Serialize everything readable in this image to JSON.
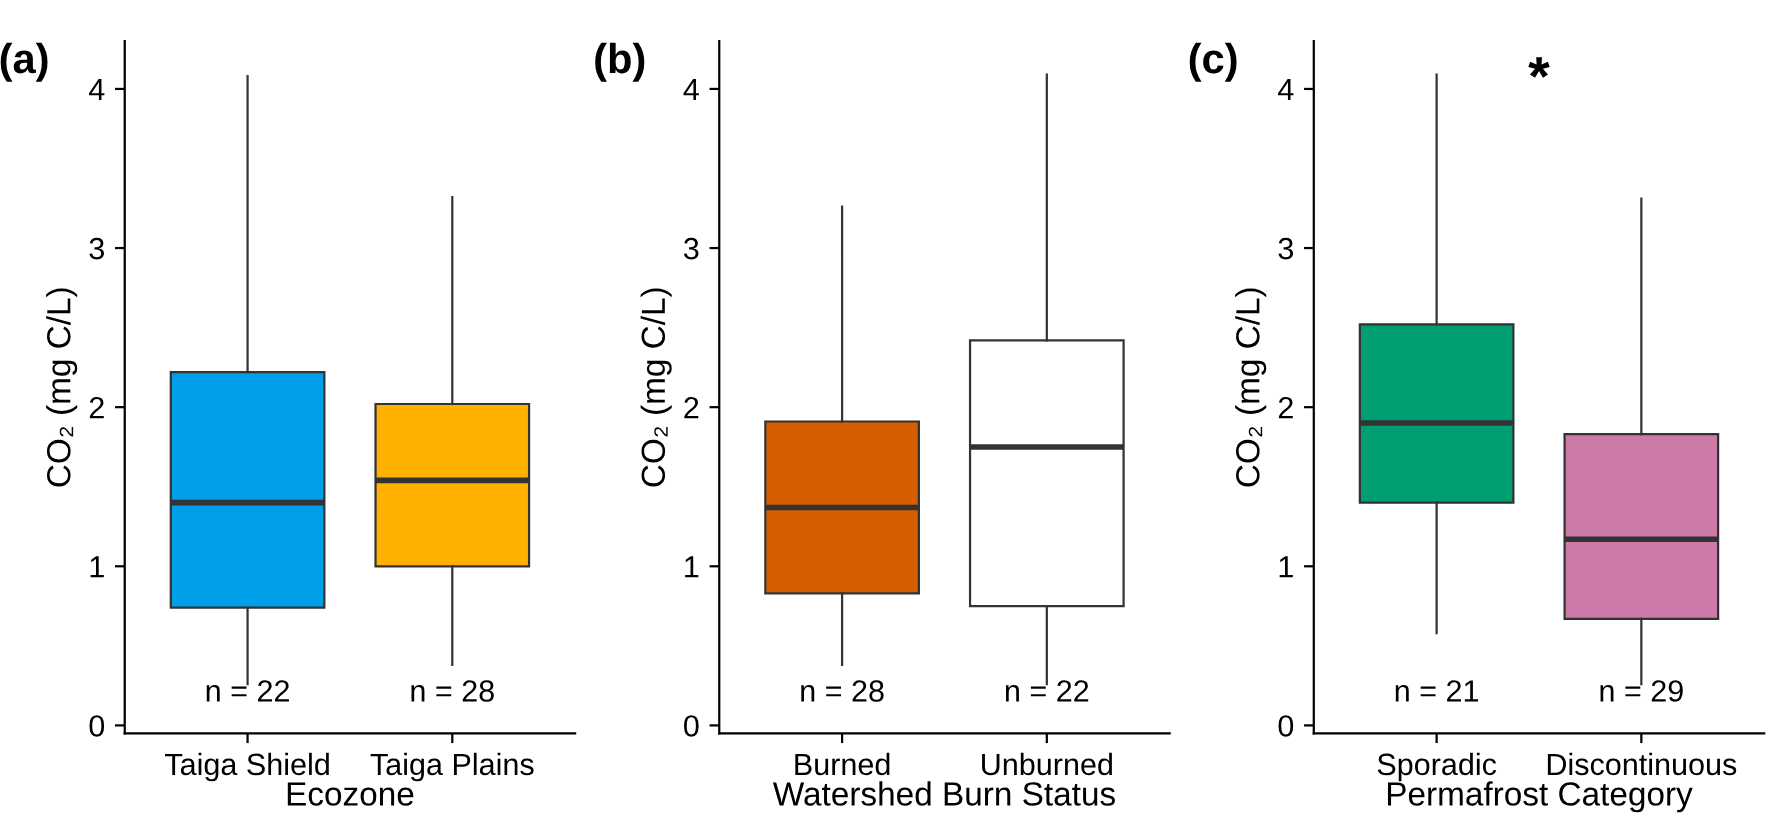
{
  "chart_data": [
    {
      "type": "box",
      "title": "(a)",
      "xlabel": "Ecozone",
      "ylabel": "CO₂ (mg C/L)",
      "categories": [
        "Taiga Shield",
        "Taiga Plains"
      ],
      "colors": [
        "#00a0e9",
        "#ffb000"
      ],
      "boxes": [
        {
          "low": 0.26,
          "q1": 0.74,
          "median": 1.4,
          "q3": 2.22,
          "high": 4.08
        },
        {
          "low": 0.38,
          "q1": 1.0,
          "median": 1.54,
          "q3": 2.02,
          "high": 3.32
        }
      ],
      "ylim": [
        -0.05,
        4.3
      ],
      "yticks": [
        0,
        1,
        2,
        3,
        4
      ],
      "grid": false,
      "annotations": [
        "n = 22",
        "n = 28"
      ]
    },
    {
      "type": "box",
      "title": "(b)",
      "xlabel": "Watershed Burn Status",
      "ylabel": "CO₂ (mg C/L)",
      "categories": [
        "Burned",
        "Unburned"
      ],
      "colors": [
        "#d55e00",
        "#ffffff"
      ],
      "boxes": [
        {
          "low": 0.38,
          "q1": 0.83,
          "median": 1.37,
          "q3": 1.91,
          "high": 3.26
        },
        {
          "low": 0.26,
          "q1": 0.75,
          "median": 1.75,
          "q3": 2.42,
          "high": 4.09
        }
      ],
      "ylim": [
        -0.05,
        4.3
      ],
      "yticks": [
        0,
        1,
        2,
        3,
        4
      ],
      "grid": false,
      "annotations": [
        "n = 28",
        "n = 22"
      ]
    },
    {
      "type": "box",
      "title": "(c)",
      "xlabel": "Permafrost Category",
      "ylabel": "CO₂ (mg C/L)",
      "categories": [
        "Sporadic",
        "Discontinuous"
      ],
      "colors": [
        "#009e73",
        "#cc79a7"
      ],
      "boxes": [
        {
          "low": 0.58,
          "q1": 1.4,
          "median": 1.9,
          "q3": 2.52,
          "high": 4.09
        },
        {
          "low": 0.26,
          "q1": 0.67,
          "median": 1.17,
          "q3": 1.83,
          "high": 3.31
        }
      ],
      "ylim": [
        -0.05,
        4.3
      ],
      "yticks": [
        0,
        1,
        2,
        3,
        4
      ],
      "grid": false,
      "annotations": [
        "n = 21",
        "n = 29",
        "*"
      ]
    }
  ]
}
